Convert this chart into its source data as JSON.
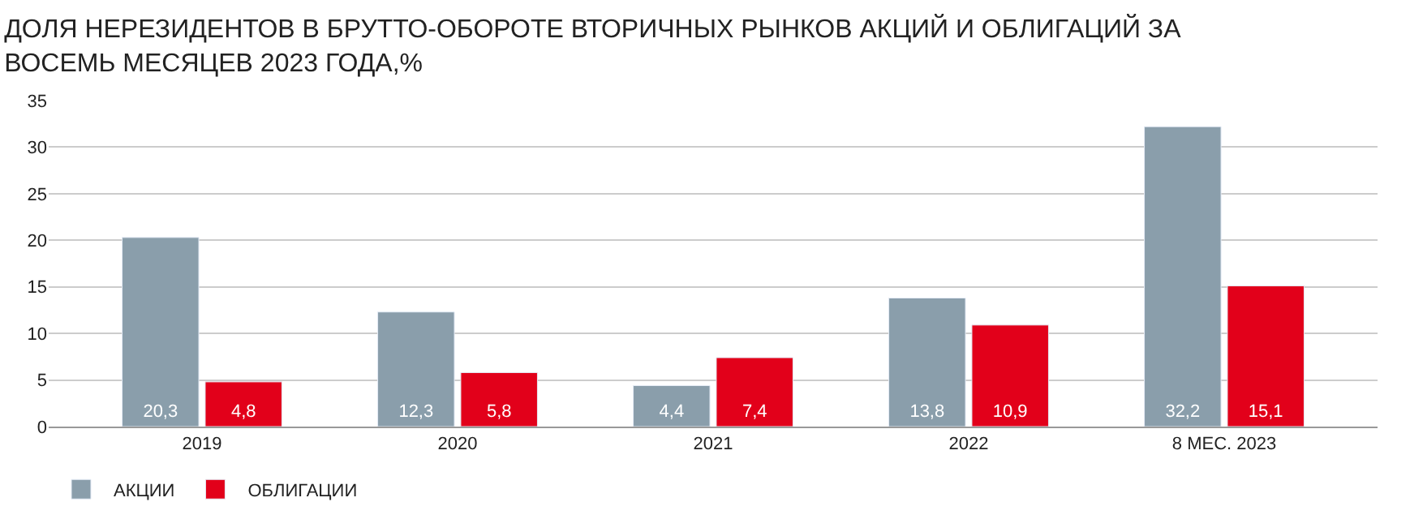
{
  "chart_data": {
    "type": "bar",
    "title": "ДОЛЯ НЕРЕЗИДЕНТОВ В БРУТТО-ОБОРОТЕ ВТОРИЧНЫХ РЫНКОВ АКЦИЙ И ОБЛИГАЦИЙ ЗА\nВОСЕМЬ МЕСЯЦЕВ 2023 ГОДА,%",
    "categories": [
      "2019",
      "2020",
      "2021",
      "2022",
      "8 МЕС. 2023"
    ],
    "series": [
      {
        "name": "АКЦИИ",
        "color": "#8a9eab",
        "values": [
          20.3,
          12.3,
          4.4,
          13.8,
          32.2
        ],
        "value_labels": [
          "20,3",
          "12,3",
          "4,4",
          "13,8",
          "32,2"
        ]
      },
      {
        "name": "ОБЛИГАЦИИ",
        "color": "#e2001a",
        "values": [
          4.8,
          5.8,
          7.4,
          10.9,
          15.1
        ],
        "value_labels": [
          "4,8",
          "5,8",
          "7,4",
          "10,9",
          "15,1"
        ]
      }
    ],
    "ylim": [
      0,
      35
    ],
    "yticks": [
      0,
      5,
      10,
      15,
      20,
      25,
      30,
      35
    ],
    "grid": "y",
    "legend": "bottom left"
  }
}
